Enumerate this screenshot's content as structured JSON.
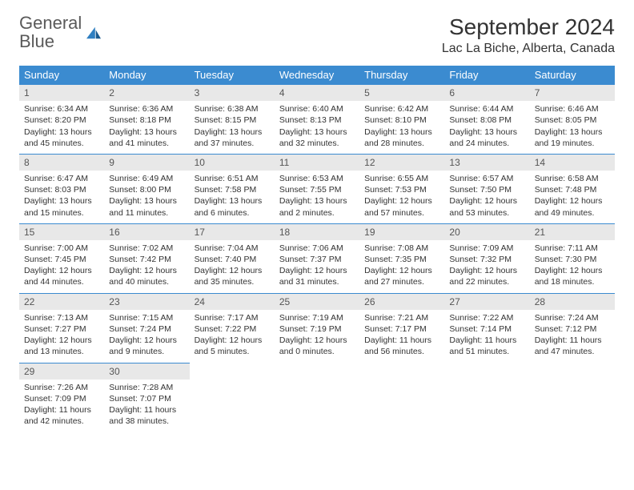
{
  "logo": {
    "text1": "General",
    "text2": "Blue"
  },
  "title": "September 2024",
  "location": "Lac La Biche, Alberta, Canada",
  "colors": {
    "header_bg": "#3b8bd0",
    "header_text": "#ffffff",
    "daynum_bg": "#e8e8e8",
    "daynum_border": "#3b8bd0",
    "logo_gray": "#5a5a5a",
    "logo_blue": "#2f7fc1",
    "body_text": "#333333"
  },
  "weekdays": [
    "Sunday",
    "Monday",
    "Tuesday",
    "Wednesday",
    "Thursday",
    "Friday",
    "Saturday"
  ],
  "days": [
    {
      "n": "1",
      "sunrise": "6:34 AM",
      "sunset": "8:20 PM",
      "dlh": "13",
      "dlm": "45"
    },
    {
      "n": "2",
      "sunrise": "6:36 AM",
      "sunset": "8:18 PM",
      "dlh": "13",
      "dlm": "41"
    },
    {
      "n": "3",
      "sunrise": "6:38 AM",
      "sunset": "8:15 PM",
      "dlh": "13",
      "dlm": "37"
    },
    {
      "n": "4",
      "sunrise": "6:40 AM",
      "sunset": "8:13 PM",
      "dlh": "13",
      "dlm": "32"
    },
    {
      "n": "5",
      "sunrise": "6:42 AM",
      "sunset": "8:10 PM",
      "dlh": "13",
      "dlm": "28"
    },
    {
      "n": "6",
      "sunrise": "6:44 AM",
      "sunset": "8:08 PM",
      "dlh": "13",
      "dlm": "24"
    },
    {
      "n": "7",
      "sunrise": "6:46 AM",
      "sunset": "8:05 PM",
      "dlh": "13",
      "dlm": "19"
    },
    {
      "n": "8",
      "sunrise": "6:47 AM",
      "sunset": "8:03 PM",
      "dlh": "13",
      "dlm": "15"
    },
    {
      "n": "9",
      "sunrise": "6:49 AM",
      "sunset": "8:00 PM",
      "dlh": "13",
      "dlm": "11"
    },
    {
      "n": "10",
      "sunrise": "6:51 AM",
      "sunset": "7:58 PM",
      "dlh": "13",
      "dlm": "6"
    },
    {
      "n": "11",
      "sunrise": "6:53 AM",
      "sunset": "7:55 PM",
      "dlh": "13",
      "dlm": "2"
    },
    {
      "n": "12",
      "sunrise": "6:55 AM",
      "sunset": "7:53 PM",
      "dlh": "12",
      "dlm": "57"
    },
    {
      "n": "13",
      "sunrise": "6:57 AM",
      "sunset": "7:50 PM",
      "dlh": "12",
      "dlm": "53"
    },
    {
      "n": "14",
      "sunrise": "6:58 AM",
      "sunset": "7:48 PM",
      "dlh": "12",
      "dlm": "49"
    },
    {
      "n": "15",
      "sunrise": "7:00 AM",
      "sunset": "7:45 PM",
      "dlh": "12",
      "dlm": "44"
    },
    {
      "n": "16",
      "sunrise": "7:02 AM",
      "sunset": "7:42 PM",
      "dlh": "12",
      "dlm": "40"
    },
    {
      "n": "17",
      "sunrise": "7:04 AM",
      "sunset": "7:40 PM",
      "dlh": "12",
      "dlm": "35"
    },
    {
      "n": "18",
      "sunrise": "7:06 AM",
      "sunset": "7:37 PM",
      "dlh": "12",
      "dlm": "31"
    },
    {
      "n": "19",
      "sunrise": "7:08 AM",
      "sunset": "7:35 PM",
      "dlh": "12",
      "dlm": "27"
    },
    {
      "n": "20",
      "sunrise": "7:09 AM",
      "sunset": "7:32 PM",
      "dlh": "12",
      "dlm": "22"
    },
    {
      "n": "21",
      "sunrise": "7:11 AM",
      "sunset": "7:30 PM",
      "dlh": "12",
      "dlm": "18"
    },
    {
      "n": "22",
      "sunrise": "7:13 AM",
      "sunset": "7:27 PM",
      "dlh": "12",
      "dlm": "13"
    },
    {
      "n": "23",
      "sunrise": "7:15 AM",
      "sunset": "7:24 PM",
      "dlh": "12",
      "dlm": "9"
    },
    {
      "n": "24",
      "sunrise": "7:17 AM",
      "sunset": "7:22 PM",
      "dlh": "12",
      "dlm": "5"
    },
    {
      "n": "25",
      "sunrise": "7:19 AM",
      "sunset": "7:19 PM",
      "dlh": "12",
      "dlm": "0"
    },
    {
      "n": "26",
      "sunrise": "7:21 AM",
      "sunset": "7:17 PM",
      "dlh": "11",
      "dlm": "56"
    },
    {
      "n": "27",
      "sunrise": "7:22 AM",
      "sunset": "7:14 PM",
      "dlh": "11",
      "dlm": "51"
    },
    {
      "n": "28",
      "sunrise": "7:24 AM",
      "sunset": "7:12 PM",
      "dlh": "11",
      "dlm": "47"
    },
    {
      "n": "29",
      "sunrise": "7:26 AM",
      "sunset": "7:09 PM",
      "dlh": "11",
      "dlm": "42"
    },
    {
      "n": "30",
      "sunrise": "7:28 AM",
      "sunset": "7:07 PM",
      "dlh": "11",
      "dlm": "38"
    }
  ]
}
